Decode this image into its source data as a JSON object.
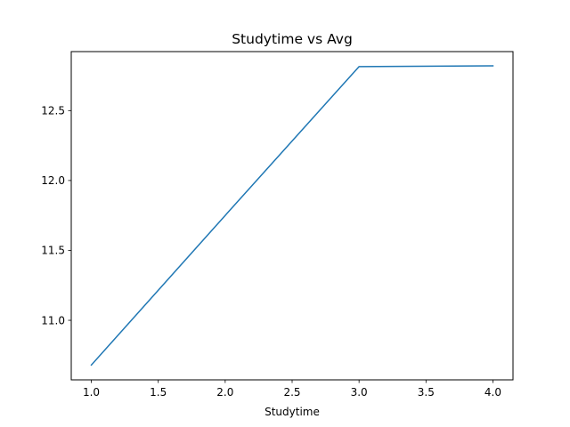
{
  "chart_data": {
    "type": "line",
    "title": "Studytime vs Avg",
    "xlabel": "Studytime",
    "ylabel": "",
    "xlim": [
      0.85,
      4.15
    ],
    "ylim": [
      10.574,
      12.922
    ],
    "grid": false,
    "x": [
      1.0,
      2.0,
      3.0,
      4.0
    ],
    "series": [
      {
        "name": "Avg",
        "color": "#1f77b4",
        "values": [
          10.68,
          11.75,
          12.815,
          12.82
        ]
      }
    ],
    "xticks": [
      1.0,
      1.5,
      2.0,
      2.5,
      3.0,
      3.5,
      4.0
    ],
    "xtick_labels": [
      "1.0",
      "1.5",
      "2.0",
      "2.5",
      "3.0",
      "3.5",
      "4.0"
    ],
    "yticks": [
      11.0,
      11.5,
      12.0,
      12.5
    ],
    "ytick_labels": [
      "11.0",
      "11.5",
      "12.0",
      "12.5"
    ]
  }
}
